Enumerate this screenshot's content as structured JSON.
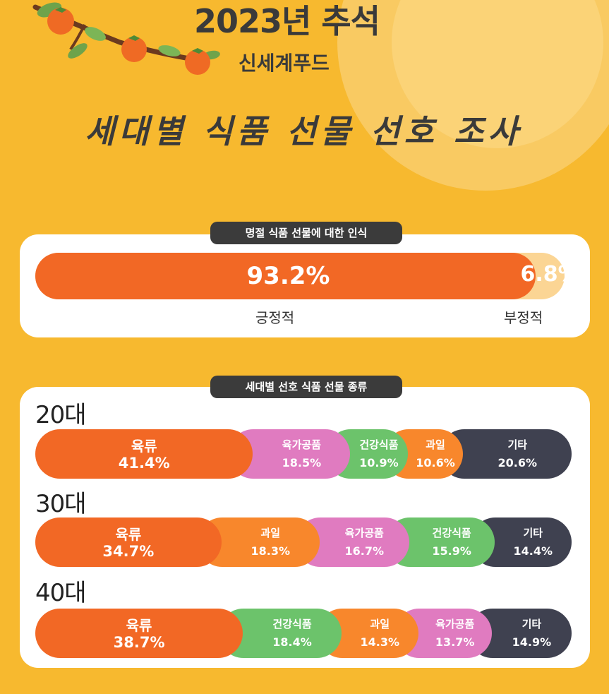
{
  "header": {
    "year_title": "2023년 추석",
    "company": "신세계푸드",
    "main_title": "세대별 식품 선물 선호 조사"
  },
  "colors": {
    "background": "#f7b92f",
    "meat": "#f26825",
    "processed_meat": "#e07bc0",
    "health_food": "#6cc36b",
    "fruit": "#f8872c",
    "other": "#3f4150",
    "positive": "#f26825",
    "negative": "#fbd594"
  },
  "chart_data": [
    {
      "type": "bar",
      "title": "명절 식품 선물에 대한 인식",
      "categories": [
        "긍정적",
        "부정적"
      ],
      "values": [
        93.2,
        6.8
      ],
      "value_labels": [
        "93.2%",
        "6.8%"
      ],
      "stacked": true
    },
    {
      "type": "bar",
      "title": "세대별 선호 식품 선물 종류",
      "stacked": true,
      "groups": [
        {
          "age": "20대",
          "segments": [
            {
              "name": "육류",
              "value": 41.4,
              "label": "41.4%",
              "color_key": "meat"
            },
            {
              "name": "육가공품",
              "value": 18.5,
              "label": "18.5%",
              "color_key": "processed_meat"
            },
            {
              "name": "건강식품",
              "value": 10.9,
              "label": "10.9%",
              "color_key": "health_food"
            },
            {
              "name": "과일",
              "value": 10.6,
              "label": "10.6%",
              "color_key": "fruit"
            },
            {
              "name": "기타",
              "value": 20.6,
              "label": "20.6%",
              "color_key": "other"
            }
          ]
        },
        {
          "age": "30대",
          "segments": [
            {
              "name": "육류",
              "value": 34.7,
              "label": "34.7%",
              "color_key": "meat"
            },
            {
              "name": "과일",
              "value": 18.3,
              "label": "18.3%",
              "color_key": "fruit"
            },
            {
              "name": "육가공품",
              "value": 16.7,
              "label": "16.7%",
              "color_key": "processed_meat"
            },
            {
              "name": "건강식품",
              "value": 15.9,
              "label": "15.9%",
              "color_key": "health_food"
            },
            {
              "name": "기타",
              "value": 14.4,
              "label": "14.4%",
              "color_key": "other"
            }
          ]
        },
        {
          "age": "40대",
          "segments": [
            {
              "name": "육류",
              "value": 38.7,
              "label": "38.7%",
              "color_key": "meat"
            },
            {
              "name": "건강식품",
              "value": 18.4,
              "label": "18.4%",
              "color_key": "health_food"
            },
            {
              "name": "과일",
              "value": 14.3,
              "label": "14.3%",
              "color_key": "fruit"
            },
            {
              "name": "육가공품",
              "value": 13.7,
              "label": "13.7%",
              "color_key": "processed_meat"
            },
            {
              "name": "기타",
              "value": 14.9,
              "label": "14.9%",
              "color_key": "other"
            }
          ]
        }
      ]
    }
  ]
}
